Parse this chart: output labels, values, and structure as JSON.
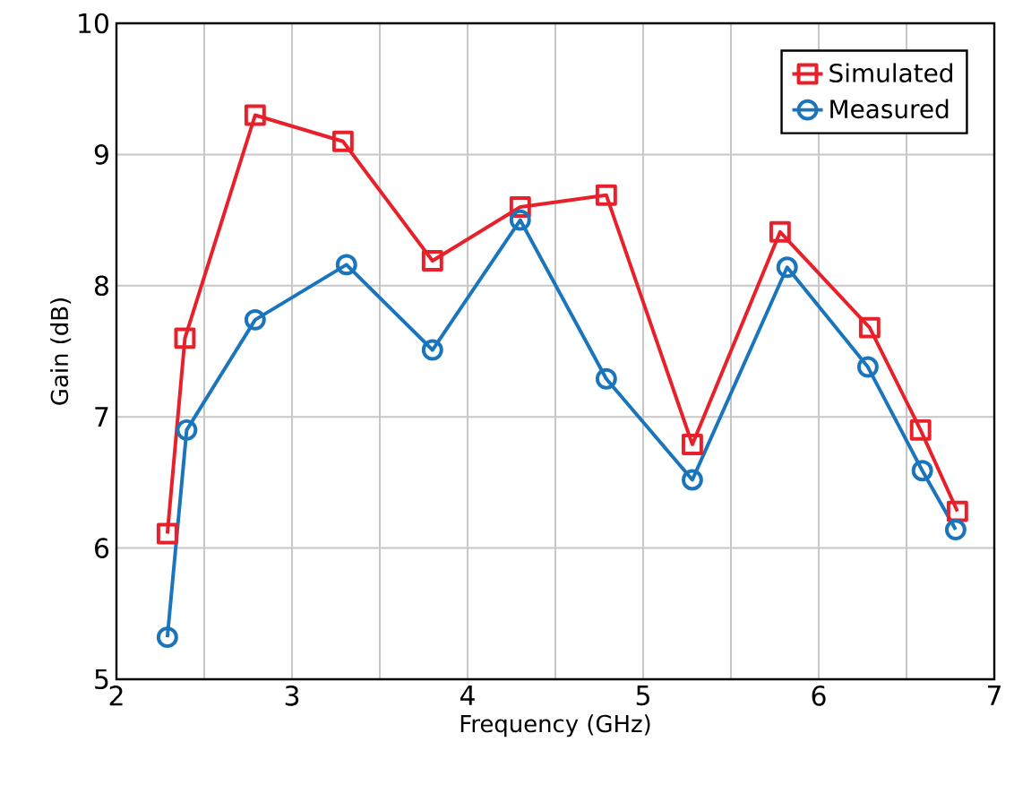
{
  "chart_data": {
    "type": "line",
    "xlabel": "Frequency (GHz)",
    "ylabel": "Gain (dB)",
    "xlim": [
      2,
      7
    ],
    "ylim": [
      5,
      10
    ],
    "xticks": [
      2,
      {
        "value": 2.5,
        "label": null
      },
      3,
      {
        "value": 3.5,
        "label": null
      },
      4,
      {
        "value": 4.5,
        "label": null
      },
      5,
      {
        "value": 5.5,
        "label": null
      },
      6,
      {
        "value": 6.5,
        "label": null
      },
      7
    ],
    "yticks": [
      5,
      6,
      7,
      8,
      9,
      10
    ],
    "grid": true,
    "legend": "top right",
    "line_style": "solid",
    "series": [
      {
        "name": "Simulated",
        "color": "#e8202a",
        "marker": "square",
        "x": [
          2.29,
          2.39,
          2.79,
          3.29,
          3.8,
          4.3,
          4.79,
          5.28,
          5.78,
          6.29,
          6.58,
          6.79
        ],
        "values": [
          6.11,
          7.6,
          9.3,
          9.1,
          8.19,
          8.6,
          8.69,
          6.79,
          8.41,
          7.68,
          6.9,
          6.28
        ]
      },
      {
        "name": "Measured",
        "color": "#1a75bc",
        "marker": "circle",
        "x": [
          2.29,
          2.4,
          2.79,
          3.31,
          3.8,
          4.3,
          4.79,
          5.28,
          5.82,
          6.28,
          6.59,
          6.78
        ],
        "values": [
          5.32,
          6.9,
          7.74,
          8.16,
          7.51,
          8.5,
          7.29,
          6.52,
          8.14,
          7.38,
          6.59,
          6.14
        ]
      }
    ]
  }
}
